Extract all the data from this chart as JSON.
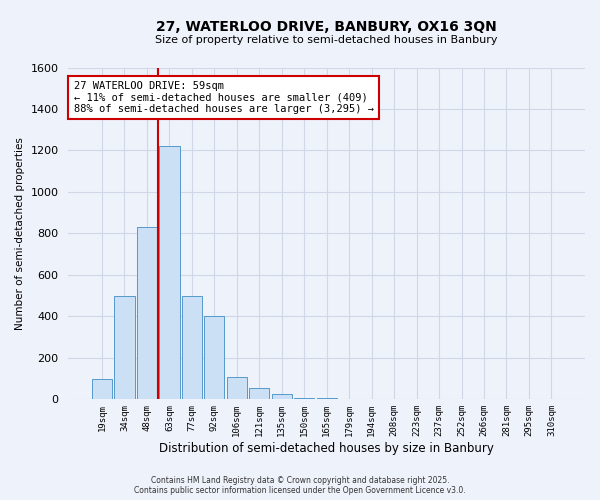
{
  "title_line1": "27, WATERLOO DRIVE, BANBURY, OX16 3QN",
  "title_line2": "Size of property relative to semi-detached houses in Banbury",
  "xlabel": "Distribution of semi-detached houses by size in Banbury",
  "ylabel": "Number of semi-detached properties",
  "bar_labels": [
    "19sqm",
    "34sqm",
    "48sqm",
    "63sqm",
    "77sqm",
    "92sqm",
    "106sqm",
    "121sqm",
    "135sqm",
    "150sqm",
    "165sqm",
    "179sqm",
    "194sqm",
    "208sqm",
    "223sqm",
    "237sqm",
    "252sqm",
    "266sqm",
    "281sqm",
    "295sqm",
    "310sqm"
  ],
  "bar_values": [
    100,
    500,
    830,
    1220,
    500,
    400,
    110,
    55,
    25,
    5,
    5,
    0,
    0,
    0,
    0,
    0,
    0,
    0,
    0,
    0,
    0
  ],
  "bar_color": "#cce0f5",
  "bar_edge_color": "#5599cc",
  "vline_x": 2.5,
  "vline_color": "#cc0000",
  "annotation_title": "27 WATERLOO DRIVE: 59sqm",
  "annotation_line2": "← 11% of semi-detached houses are smaller (409)",
  "annotation_line3": "88% of semi-detached houses are larger (3,295) →",
  "annotation_box_color": "#ffffff",
  "annotation_box_edge": "#cc0000",
  "ylim": [
    0,
    1600
  ],
  "yticks": [
    0,
    200,
    400,
    600,
    800,
    1000,
    1200,
    1400,
    1600
  ],
  "bg_color": "#eef2fa",
  "grid_color": "#d0d8e8",
  "footer_line1": "Contains HM Land Registry data © Crown copyright and database right 2025.",
  "footer_line2": "Contains public sector information licensed under the Open Government Licence v3.0."
}
